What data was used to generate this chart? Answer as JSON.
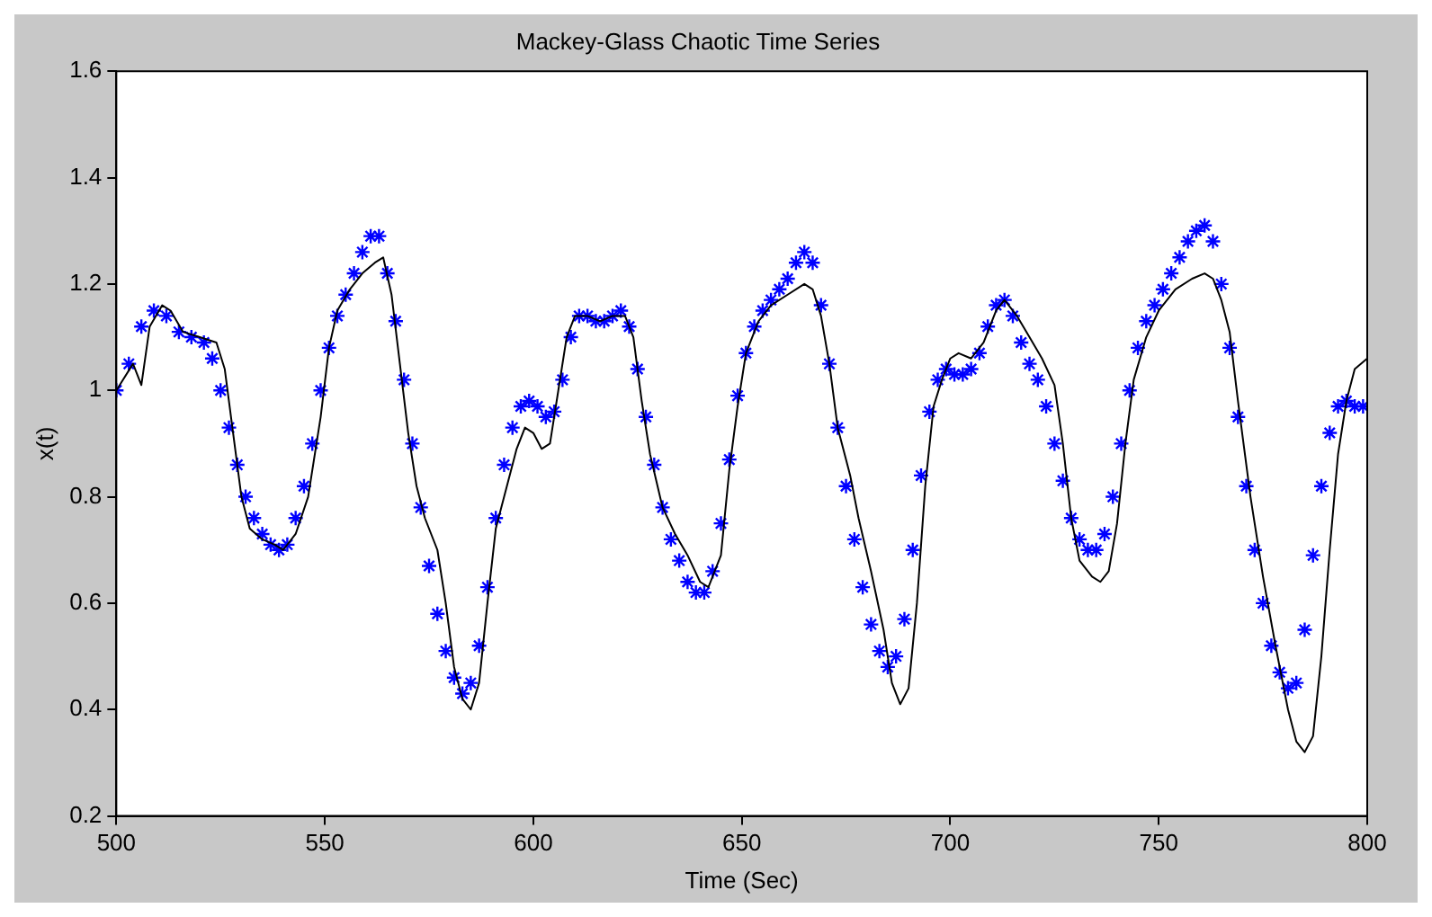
{
  "chart_data": {
    "type": "line",
    "title": "Mackey-Glass Chaotic Time Series",
    "xlabel": "Time (Sec)",
    "ylabel": "x(t)",
    "xlim": [
      500,
      800
    ],
    "xticks": [
      500,
      550,
      600,
      650,
      700,
      750,
      800
    ],
    "ylim": [
      0.2,
      1.6
    ],
    "yticks": [
      0.2,
      0.4,
      0.6,
      0.8,
      1,
      1.2,
      1.4,
      1.6
    ],
    "grid": false,
    "legend": false,
    "series": [
      {
        "type": "line",
        "color": "#000000",
        "marker": "none",
        "line_style": "solid",
        "x": [
          500,
          504,
          506,
          508,
          511,
          513,
          516,
          520,
          524,
          526,
          528,
          530,
          532,
          535,
          538,
          540,
          543,
          546,
          549,
          551,
          553,
          556,
          559,
          562,
          564,
          566,
          568,
          570,
          572,
          574,
          577,
          579,
          581,
          583,
          585,
          587,
          589,
          591,
          593,
          596,
          598,
          600,
          602,
          604,
          606,
          608,
          610,
          613,
          616,
          619,
          622,
          624,
          626,
          628,
          631,
          634,
          637,
          640,
          642,
          645,
          647,
          649,
          651,
          654,
          657,
          661,
          665,
          667,
          669,
          671,
          673,
          676,
          678,
          681,
          684,
          686,
          688,
          690,
          692,
          694,
          696,
          698,
          700,
          702,
          705,
          708,
          711,
          713,
          716,
          719,
          722,
          725,
          727,
          729,
          731,
          734,
          736,
          738,
          740,
          742,
          744,
          747,
          750,
          754,
          758,
          761,
          763,
          765,
          767,
          769,
          772,
          775,
          778,
          781,
          783,
          785,
          787,
          789,
          791,
          793,
          795,
          797,
          800
        ],
        "values": [
          1.0,
          1.05,
          1.01,
          1.12,
          1.16,
          1.15,
          1.11,
          1.1,
          1.09,
          1.04,
          0.92,
          0.8,
          0.74,
          0.72,
          0.71,
          0.7,
          0.73,
          0.8,
          0.95,
          1.08,
          1.15,
          1.19,
          1.22,
          1.24,
          1.25,
          1.18,
          1.05,
          0.92,
          0.82,
          0.76,
          0.7,
          0.6,
          0.48,
          0.42,
          0.4,
          0.45,
          0.6,
          0.74,
          0.8,
          0.89,
          0.93,
          0.92,
          0.89,
          0.9,
          1.0,
          1.1,
          1.14,
          1.14,
          1.13,
          1.14,
          1.14,
          1.1,
          0.98,
          0.88,
          0.78,
          0.73,
          0.69,
          0.64,
          0.63,
          0.69,
          0.85,
          0.97,
          1.07,
          1.13,
          1.16,
          1.18,
          1.2,
          1.19,
          1.14,
          1.05,
          0.93,
          0.84,
          0.76,
          0.66,
          0.55,
          0.45,
          0.41,
          0.44,
          0.6,
          0.82,
          0.97,
          1.02,
          1.06,
          1.07,
          1.06,
          1.09,
          1.15,
          1.17,
          1.14,
          1.1,
          1.06,
          1.01,
          0.9,
          0.76,
          0.68,
          0.65,
          0.64,
          0.66,
          0.75,
          0.9,
          1.02,
          1.1,
          1.15,
          1.19,
          1.21,
          1.22,
          1.21,
          1.17,
          1.11,
          0.98,
          0.8,
          0.65,
          0.52,
          0.4,
          0.34,
          0.32,
          0.35,
          0.5,
          0.7,
          0.88,
          0.98,
          1.04,
          1.06
        ]
      },
      {
        "type": "scatter",
        "color": "#0000ff",
        "marker": "cross",
        "x": [
          500,
          503,
          506,
          509,
          512,
          515,
          518,
          521,
          523,
          525,
          527,
          529,
          531,
          533,
          535,
          537,
          539,
          541,
          543,
          545,
          547,
          549,
          551,
          553,
          555,
          557,
          559,
          561,
          563,
          565,
          567,
          569,
          571,
          573,
          575,
          577,
          579,
          581,
          583,
          585,
          587,
          589,
          591,
          593,
          595,
          597,
          599,
          601,
          603,
          605,
          607,
          609,
          611,
          613,
          615,
          617,
          619,
          621,
          623,
          625,
          627,
          629,
          631,
          633,
          635,
          637,
          639,
          641,
          643,
          645,
          647,
          649,
          651,
          653,
          655,
          657,
          659,
          661,
          663,
          665,
          667,
          669,
          671,
          673,
          675,
          677,
          679,
          681,
          683,
          685,
          687,
          689,
          691,
          693,
          695,
          697,
          699,
          701,
          703,
          705,
          707,
          709,
          711,
          713,
          715,
          717,
          719,
          721,
          723,
          725,
          727,
          729,
          731,
          733,
          735,
          737,
          739,
          741,
          743,
          745,
          747,
          749,
          751,
          753,
          755,
          757,
          759,
          761,
          763,
          765,
          767,
          769,
          771,
          773,
          775,
          777,
          779,
          781,
          783,
          785,
          787,
          789,
          791,
          793,
          795,
          797,
          799
        ],
        "values": [
          1.0,
          1.05,
          1.12,
          1.15,
          1.14,
          1.11,
          1.1,
          1.09,
          1.06,
          1.0,
          0.93,
          0.86,
          0.8,
          0.76,
          0.73,
          0.71,
          0.7,
          0.71,
          0.76,
          0.82,
          0.9,
          1.0,
          1.08,
          1.14,
          1.18,
          1.22,
          1.26,
          1.29,
          1.29,
          1.22,
          1.13,
          1.02,
          0.9,
          0.78,
          0.67,
          0.58,
          0.51,
          0.46,
          0.43,
          0.45,
          0.52,
          0.63,
          0.76,
          0.86,
          0.93,
          0.97,
          0.98,
          0.97,
          0.95,
          0.96,
          1.02,
          1.1,
          1.14,
          1.14,
          1.13,
          1.13,
          1.14,
          1.15,
          1.12,
          1.04,
          0.95,
          0.86,
          0.78,
          0.72,
          0.68,
          0.64,
          0.62,
          0.62,
          0.66,
          0.75,
          0.87,
          0.99,
          1.07,
          1.12,
          1.15,
          1.17,
          1.19,
          1.21,
          1.24,
          1.26,
          1.24,
          1.16,
          1.05,
          0.93,
          0.82,
          0.72,
          0.63,
          0.56,
          0.51,
          0.48,
          0.5,
          0.57,
          0.7,
          0.84,
          0.96,
          1.02,
          1.04,
          1.03,
          1.03,
          1.04,
          1.07,
          1.12,
          1.16,
          1.17,
          1.14,
          1.09,
          1.05,
          1.02,
          0.97,
          0.9,
          0.83,
          0.76,
          0.72,
          0.7,
          0.7,
          0.73,
          0.8,
          0.9,
          1.0,
          1.08,
          1.13,
          1.16,
          1.19,
          1.22,
          1.25,
          1.28,
          1.3,
          1.31,
          1.28,
          1.2,
          1.08,
          0.95,
          0.82,
          0.7,
          0.6,
          0.52,
          0.47,
          0.44,
          0.45,
          0.55,
          0.69,
          0.82,
          0.92,
          0.97,
          0.98,
          0.97,
          0.97
        ]
      }
    ]
  }
}
